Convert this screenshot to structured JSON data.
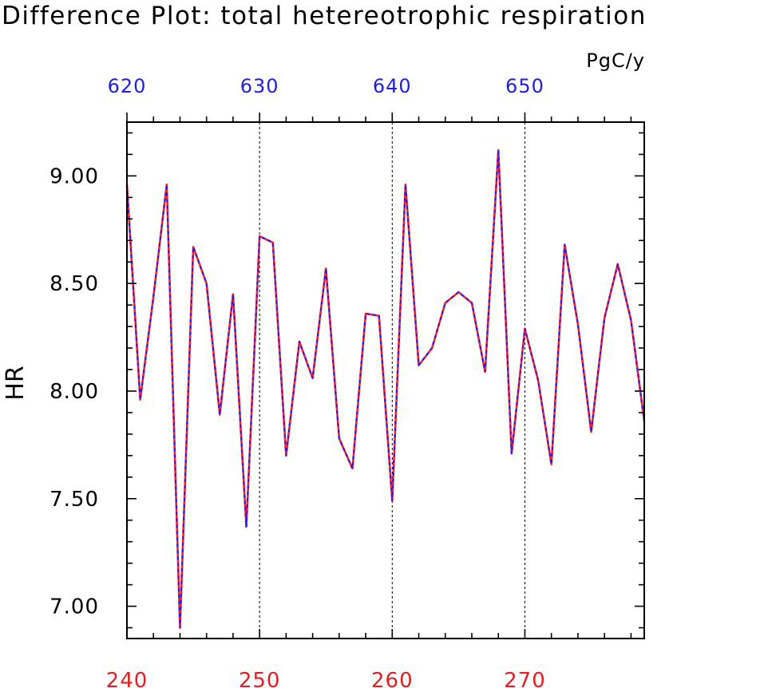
{
  "chart_data": {
    "type": "line",
    "title": "Difference Plot: total hetereotrophic respiration",
    "units": "PgC/y",
    "ylabel": "HR",
    "xlabel": "",
    "ylim": [
      6.85,
      9.25
    ],
    "xlim": [
      240,
      279
    ],
    "yticks": [
      {
        "value": 7.0,
        "label": "7.00"
      },
      {
        "value": 7.5,
        "label": "7.50"
      },
      {
        "value": 8.0,
        "label": "8.00"
      },
      {
        "value": 8.5,
        "label": "8.50"
      },
      {
        "value": 9.0,
        "label": "9.00"
      }
    ],
    "xticks_bottom": [
      {
        "value": 240,
        "label": "240"
      },
      {
        "value": 250,
        "label": "250"
      },
      {
        "value": 260,
        "label": "260"
      },
      {
        "value": 270,
        "label": "270"
      }
    ],
    "xticks_top": [
      {
        "value": 240,
        "label": "620"
      },
      {
        "value": 250,
        "label": "630"
      },
      {
        "value": 260,
        "label": "640"
      },
      {
        "value": 270,
        "label": "650"
      }
    ],
    "grid": "vertical dashed at major x ticks",
    "colors": {
      "bottom_axis_labels": "#e02020",
      "top_axis_labels": "#2020e0",
      "series_red": "#ff2020",
      "series_blue": "#1a1aff"
    },
    "x": [
      240,
      241,
      242,
      243,
      244,
      245,
      246,
      247,
      248,
      249,
      250,
      251,
      252,
      253,
      254,
      255,
      256,
      257,
      258,
      259,
      260,
      261,
      262,
      263,
      264,
      265,
      266,
      267,
      268,
      269,
      270,
      271,
      272,
      273,
      274,
      275,
      276,
      277,
      278,
      279
    ],
    "series": [
      {
        "color": "#ff2020",
        "style": "solid",
        "values": [
          8.96,
          7.96,
          8.44,
          8.96,
          6.9,
          8.67,
          8.5,
          7.89,
          8.45,
          7.37,
          8.72,
          8.69,
          7.7,
          8.23,
          8.06,
          8.57,
          7.78,
          7.64,
          8.36,
          8.35,
          7.49,
          8.96,
          8.12,
          8.2,
          8.41,
          8.46,
          8.41,
          8.09,
          9.12,
          7.71,
          8.29,
          8.05,
          7.66,
          8.68,
          8.31,
          7.81,
          8.34,
          8.59,
          8.33,
          7.86
        ]
      },
      {
        "color": "#1a1aff",
        "style": "dashed",
        "values": [
          8.96,
          7.96,
          8.44,
          8.96,
          6.9,
          8.67,
          8.5,
          7.89,
          8.45,
          7.37,
          8.72,
          8.69,
          7.7,
          8.23,
          8.06,
          8.57,
          7.78,
          7.64,
          8.36,
          8.35,
          7.49,
          8.96,
          8.12,
          8.2,
          8.41,
          8.46,
          8.41,
          8.09,
          9.12,
          7.71,
          8.29,
          8.05,
          7.66,
          8.68,
          8.31,
          7.81,
          8.34,
          8.59,
          8.33,
          7.86
        ]
      }
    ]
  }
}
